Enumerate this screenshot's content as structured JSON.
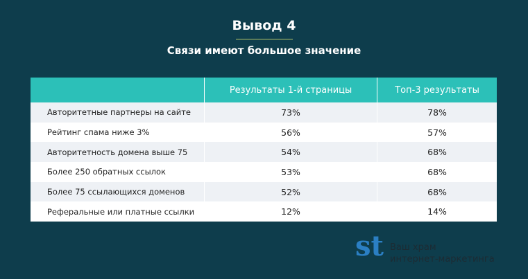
{
  "header": {
    "title": "Вывод 4",
    "subtitle": "Связи имеют большое значение"
  },
  "table": {
    "columns": [
      "Результаты 1-й страницы",
      "Топ-3 результаты"
    ],
    "rows": [
      [
        "Авторитетные партнеры на сайте",
        "73%",
        "78%"
      ],
      [
        "Рейтинг спама ниже 3%",
        "56%",
        "57%"
      ],
      [
        "Авторитетность домена выше 75",
        "54%",
        "68%"
      ],
      [
        "Более 250 обратных ссылок",
        "53%",
        "68%"
      ],
      [
        "Более 75 ссылающихся доменов",
        "52%",
        "68%"
      ],
      [
        "Реферальные или платные ссылки",
        "12%",
        "14%"
      ]
    ]
  },
  "logo": {
    "mark": "st",
    "line1": "Ваш храм",
    "line2": "интернет-маркетинга"
  }
}
